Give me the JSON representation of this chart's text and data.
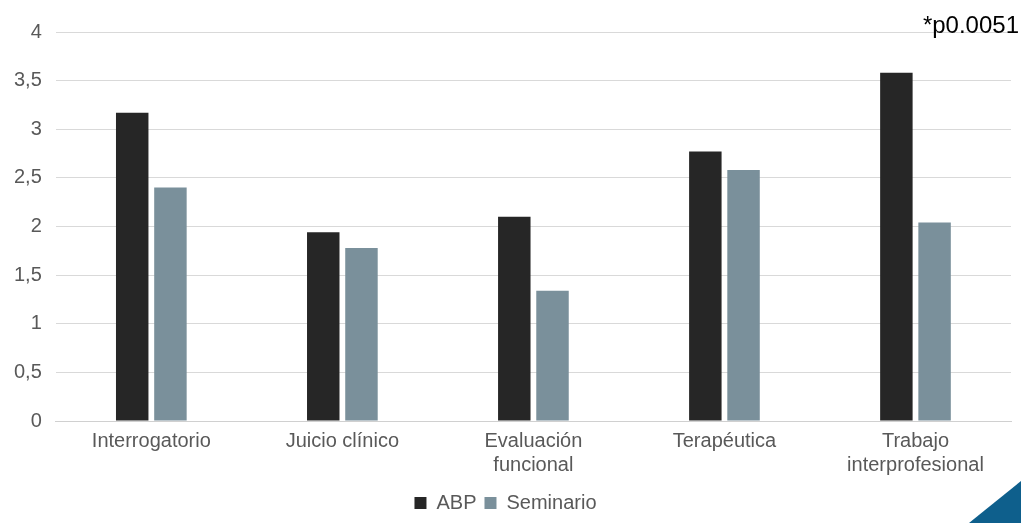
{
  "chart_data": {
    "type": "bar",
    "categories": [
      "Interrogatorio",
      "Juicio clínico",
      "Evaluación funcional",
      "Terapéutica",
      "Trabajo interprofesional"
    ],
    "series": [
      {
        "name": "ABP",
        "color": "#262626",
        "values": [
          3.17,
          1.94,
          2.1,
          2.77,
          3.58
        ]
      },
      {
        "name": "Seminario",
        "color": "#7a909b",
        "values": [
          2.4,
          1.78,
          1.34,
          2.58,
          2.04
        ]
      }
    ],
    "ylim": [
      0,
      4
    ],
    "yticks": [
      0,
      {
        "value": 0.5,
        "label": "0,5"
      },
      1,
      {
        "value": 1.5,
        "label": "1,5"
      },
      2,
      {
        "value": 2.5,
        "label": "2,5"
      },
      3,
      {
        "value": 3.5,
        "label": "3,5"
      },
      4
    ],
    "grid": "y",
    "legend": "bottom",
    "annotations": [
      "*p0.0051"
    ]
  }
}
